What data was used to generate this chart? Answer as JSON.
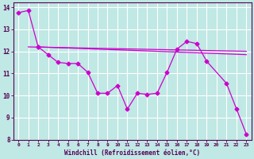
{
  "xlabel": "Windchill (Refroidissement éolien,°C)",
  "background_color": "#c0e8e4",
  "grid_color": "#ffffff",
  "line_color": "#cc00cc",
  "spine_color": "#550055",
  "xlim": [
    -0.5,
    23.5
  ],
  "ylim": [
    8,
    14.2
  ],
  "yticks": [
    8,
    9,
    10,
    11,
    12,
    13,
    14
  ],
  "xticks": [
    0,
    1,
    2,
    3,
    4,
    5,
    6,
    7,
    8,
    9,
    10,
    11,
    12,
    13,
    14,
    15,
    16,
    17,
    18,
    19,
    20,
    21,
    22,
    23
  ],
  "straight_line1": {
    "x": [
      1,
      23
    ],
    "y": [
      12.2,
      12.0
    ]
  },
  "straight_line2": {
    "x": [
      2,
      23
    ],
    "y": [
      12.2,
      11.85
    ]
  },
  "curve1_x": [
    0,
    1,
    2
  ],
  "curve1_y": [
    13.75,
    13.85,
    12.2
  ],
  "curve2_x": [
    2,
    3,
    4,
    5,
    6,
    7,
    8,
    9,
    10,
    11,
    12,
    13,
    14,
    15,
    16,
    17,
    18,
    19,
    21,
    22,
    23
  ],
  "curve2_y": [
    12.2,
    11.85,
    11.5,
    11.45,
    11.45,
    11.05,
    10.1,
    10.1,
    10.45,
    9.38,
    10.1,
    10.05,
    10.1,
    11.05,
    12.1,
    12.45,
    12.35,
    11.55,
    10.55,
    9.4,
    8.25
  ]
}
